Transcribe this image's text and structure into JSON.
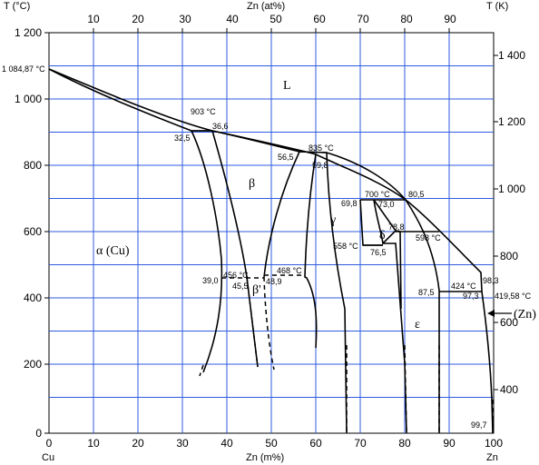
{
  "axes": {
    "left_title": "T (°C)",
    "right_title": "T (K)",
    "top_title": "Zn (at%)",
    "bottom_title": "Zn (m%)",
    "bottom_left_element": "Cu",
    "bottom_right_element": "Zn",
    "bottom_ticks": [
      "0",
      "10",
      "20",
      "30",
      "40",
      "50",
      "60",
      "70",
      "80",
      "90",
      "100"
    ],
    "top_ticks": [
      "10",
      "20",
      "30",
      "40",
      "50",
      "60",
      "70",
      "80",
      "90"
    ],
    "left_ticks": [
      "0",
      "200",
      "400",
      "600",
      "800",
      "1 000",
      "1 200"
    ],
    "right_ticks": [
      "400",
      "600",
      "800",
      "1 000",
      "1 200",
      "1 400"
    ]
  },
  "phases": {
    "liquid": "L",
    "alpha": "α (Cu)",
    "beta": "β",
    "beta_prime": "β'",
    "gamma": "γ",
    "delta": "δ",
    "epsilon": "ε",
    "zn": "(Zn)"
  },
  "annotations": {
    "cu_melting": "1 084,87 °C",
    "t903": "903 °C",
    "c36_6": "36,6",
    "c32_5": "32,5",
    "t835": "835 °C",
    "c56_5": "56,5",
    "c59_8": "59,8",
    "t700": "700 °C",
    "c80_5": "80,5",
    "c69_8": "69,8",
    "c73_0": "73,0",
    "c78_8": "78,8",
    "t598": "598 °C",
    "t558": "558 °C",
    "c76_5": "76,5",
    "t456": "456 °C",
    "c39_0": "39,0",
    "c45_5": "45,5",
    "t468": "468 °C",
    "c48_9": "48,9",
    "t424": "424 °C",
    "c98_3": "98,3",
    "c87_5": "87,5",
    "c97_3": "97,3",
    "zn_melting": "419,58 °C",
    "c99_7": "99,7"
  },
  "colors": {
    "grid": "#2f5be0",
    "curve": "#000000"
  }
}
